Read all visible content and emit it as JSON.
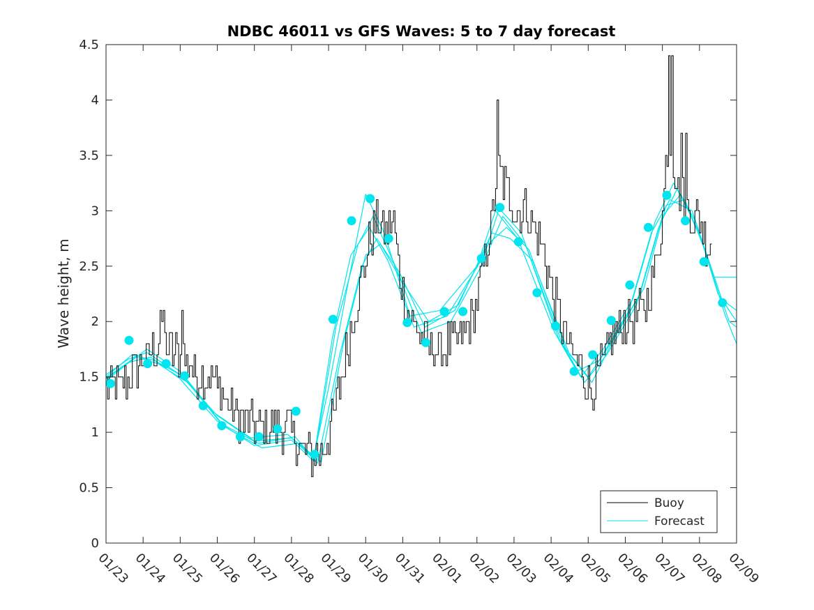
{
  "chart_data": {
    "type": "line",
    "title": "NDBC 46011 vs GFS Waves: 5 to 7 day forecast",
    "xlabel": "",
    "ylabel": "Wave height, m",
    "x_unit": "days since 01/23",
    "xlim": [
      0,
      17
    ],
    "ylim": [
      0,
      4.5
    ],
    "xtick_values": [
      0,
      1,
      2,
      3,
      4,
      5,
      6,
      7,
      8,
      9,
      10,
      11,
      12,
      13,
      14,
      15,
      16,
      17
    ],
    "xtick_labels": [
      "01/23",
      "01/24",
      "01/25",
      "01/26",
      "01/27",
      "01/28",
      "01/29",
      "01/30",
      "01/31",
      "02/01",
      "02/02",
      "02/03",
      "02/04",
      "02/05",
      "02/06",
      "02/07",
      "02/08",
      "02/09"
    ],
    "ytick_values": [
      0,
      0.5,
      1,
      1.5,
      2,
      2.5,
      3,
      3.5,
      4,
      4.5
    ],
    "ytick_labels": [
      "0",
      "0.5",
      "1",
      "1.5",
      "2",
      "2.5",
      "3",
      "3.5",
      "4",
      "4.5"
    ],
    "grid": false,
    "legend": {
      "position": "bottom-right",
      "entries": [
        "Buoy",
        "Forecast"
      ]
    },
    "colors": {
      "buoy": "#000000",
      "forecast": "#00e5ee"
    },
    "buoy_anchors": [
      [
        0.0,
        1.4
      ],
      [
        0.4,
        1.4
      ],
      [
        0.7,
        1.55
      ],
      [
        0.9,
        1.62
      ],
      [
        1.2,
        1.7
      ],
      [
        1.5,
        1.85
      ],
      [
        1.75,
        1.72
      ],
      [
        2.05,
        1.7
      ],
      [
        2.4,
        1.55
      ],
      [
        2.8,
        1.5
      ],
      [
        3.2,
        1.3
      ],
      [
        3.6,
        1.1
      ],
      [
        4.0,
        1.05
      ],
      [
        4.4,
        1.05
      ],
      [
        4.9,
        1.05
      ],
      [
        5.2,
        0.9
      ],
      [
        5.5,
        0.8
      ],
      [
        5.8,
        0.8
      ],
      [
        6.1,
        1.1
      ],
      [
        6.4,
        1.6
      ],
      [
        6.7,
        2.1
      ],
      [
        6.9,
        2.4
      ],
      [
        7.1,
        2.75
      ],
      [
        7.3,
        2.9
      ],
      [
        7.55,
        2.8
      ],
      [
        7.75,
        2.9
      ],
      [
        7.9,
        2.4
      ],
      [
        8.1,
        2.1
      ],
      [
        8.4,
        1.9
      ],
      [
        8.7,
        1.75
      ],
      [
        9.0,
        1.75
      ],
      [
        9.3,
        1.8
      ],
      [
        9.6,
        1.85
      ],
      [
        9.9,
        2.05
      ],
      [
        10.1,
        2.4
      ],
      [
        10.4,
        2.9
      ],
      [
        10.55,
        3.4
      ],
      [
        10.8,
        3.2
      ],
      [
        11.05,
        3.0
      ],
      [
        11.3,
        3.0
      ],
      [
        11.5,
        2.9
      ],
      [
        11.8,
        2.6
      ],
      [
        12.1,
        2.2
      ],
      [
        12.4,
        1.8
      ],
      [
        12.65,
        1.65
      ],
      [
        12.9,
        1.5
      ],
      [
        13.1,
        1.4
      ],
      [
        13.4,
        1.6
      ],
      [
        13.7,
        1.9
      ],
      [
        14.0,
        2.0
      ],
      [
        14.3,
        2.0
      ],
      [
        14.6,
        2.2
      ],
      [
        14.8,
        2.5
      ],
      [
        15.0,
        3.0
      ],
      [
        15.15,
        3.7
      ],
      [
        15.4,
        3.2
      ],
      [
        15.7,
        3.0
      ],
      [
        16.0,
        2.9
      ],
      [
        16.2,
        2.7
      ],
      [
        16.35,
        2.7
      ]
    ],
    "buoy_spikes": [
      [
        1.46,
        2.1
      ],
      [
        1.54,
        2.1
      ],
      [
        2.05,
        2.1
      ],
      [
        10.53,
        4.0
      ],
      [
        15.17,
        4.4
      ],
      [
        15.24,
        4.4
      ],
      [
        15.5,
        3.7
      ],
      [
        15.62,
        3.7
      ]
    ],
    "forecast_dots": [
      [
        0.12,
        1.44
      ],
      [
        0.62,
        1.83
      ],
      [
        1.12,
        1.62
      ],
      [
        1.62,
        1.62
      ],
      [
        2.12,
        1.51
      ],
      [
        2.62,
        1.24
      ],
      [
        3.12,
        1.06
      ],
      [
        3.62,
        0.96
      ],
      [
        4.12,
        0.96
      ],
      [
        4.62,
        1.03
      ],
      [
        5.12,
        1.19
      ],
      [
        5.62,
        0.8
      ],
      [
        6.12,
        2.02
      ],
      [
        6.62,
        2.91
      ],
      [
        7.12,
        3.11
      ],
      [
        7.62,
        2.75
      ],
      [
        8.12,
        1.99
      ],
      [
        8.62,
        1.81
      ],
      [
        9.12,
        2.09
      ],
      [
        9.62,
        2.09
      ],
      [
        10.12,
        2.57
      ],
      [
        10.62,
        3.03
      ],
      [
        11.12,
        2.72
      ],
      [
        11.62,
        2.26
      ],
      [
        12.12,
        1.96
      ],
      [
        12.62,
        1.55
      ],
      [
        13.12,
        1.7
      ],
      [
        13.62,
        2.01
      ],
      [
        14.12,
        2.33
      ],
      [
        14.62,
        2.85
      ],
      [
        15.12,
        3.14
      ],
      [
        15.62,
        2.91
      ],
      [
        16.12,
        2.54
      ],
      [
        16.62,
        2.17
      ]
    ],
    "forecast_runs": [
      {
        "name": "run 1",
        "points": [
          [
            0,
            1.52
          ],
          [
            0.6,
            1.66
          ],
          [
            1.1,
            1.72
          ],
          [
            2.0,
            1.52
          ],
          [
            3.0,
            1.15
          ],
          [
            4.0,
            0.92
          ],
          [
            5.0,
            0.95
          ],
          [
            5.6,
            0.76
          ],
          [
            6.1,
            1.85
          ],
          [
            6.6,
            2.6
          ],
          [
            7.1,
            2.85
          ],
          [
            7.6,
            2.55
          ],
          [
            8.3,
            1.95
          ],
          [
            9.2,
            2.05
          ],
          [
            10.2,
            2.6
          ],
          [
            10.6,
            3.02
          ],
          [
            11.2,
            2.8
          ],
          [
            12.2,
            1.85
          ],
          [
            12.8,
            1.5
          ],
          [
            13.4,
            1.75
          ],
          [
            14.2,
            2.2
          ],
          [
            14.8,
            2.9
          ],
          [
            15.3,
            3.25
          ],
          [
            15.9,
            2.9
          ],
          [
            16.5,
            2.25
          ],
          [
            17.0,
            2.0
          ]
        ]
      },
      {
        "name": "run 2",
        "points": [
          [
            0,
            1.48
          ],
          [
            0.6,
            1.63
          ],
          [
            1.2,
            1.68
          ],
          [
            2.0,
            1.48
          ],
          [
            3.0,
            1.1
          ],
          [
            4.0,
            0.88
          ],
          [
            5.0,
            0.93
          ],
          [
            5.6,
            0.74
          ],
          [
            6.2,
            1.95
          ],
          [
            6.8,
            2.7
          ],
          [
            7.2,
            2.95
          ],
          [
            7.8,
            2.5
          ],
          [
            8.5,
            1.9
          ],
          [
            9.3,
            2.0
          ],
          [
            10.2,
            2.55
          ],
          [
            10.7,
            2.95
          ],
          [
            11.3,
            2.7
          ],
          [
            12.3,
            1.8
          ],
          [
            12.9,
            1.45
          ],
          [
            13.5,
            1.7
          ],
          [
            14.3,
            2.15
          ],
          [
            14.9,
            2.85
          ],
          [
            15.4,
            3.2
          ],
          [
            16.0,
            2.8
          ],
          [
            16.6,
            2.2
          ],
          [
            17.0,
            2.1
          ]
        ]
      },
      {
        "name": "run 3",
        "points": [
          [
            0,
            1.5
          ],
          [
            0.7,
            1.7
          ],
          [
            1.3,
            1.65
          ],
          [
            2.1,
            1.5
          ],
          [
            3.1,
            1.08
          ],
          [
            4.1,
            0.9
          ],
          [
            5.1,
            0.96
          ],
          [
            5.7,
            0.72
          ],
          [
            6.3,
            1.7
          ],
          [
            6.9,
            2.5
          ],
          [
            7.3,
            2.75
          ],
          [
            7.9,
            2.45
          ],
          [
            8.6,
            1.95
          ],
          [
            9.4,
            2.1
          ],
          [
            10.3,
            2.7
          ],
          [
            10.8,
            2.85
          ],
          [
            11.4,
            2.65
          ],
          [
            12.4,
            1.75
          ],
          [
            13.0,
            1.5
          ],
          [
            13.6,
            1.8
          ],
          [
            14.4,
            2.25
          ],
          [
            15.0,
            2.95
          ],
          [
            15.5,
            3.15
          ],
          [
            16.1,
            2.7
          ],
          [
            16.7,
            2.05
          ],
          [
            17.0,
            1.8
          ]
        ]
      },
      {
        "name": "run 4",
        "points": [
          [
            0,
            1.46
          ],
          [
            0.5,
            1.6
          ],
          [
            1.1,
            1.75
          ],
          [
            2.0,
            1.55
          ],
          [
            2.9,
            1.18
          ],
          [
            3.9,
            0.95
          ],
          [
            4.9,
            0.98
          ],
          [
            5.6,
            0.78
          ],
          [
            6.0,
            1.4
          ],
          [
            6.5,
            2.3
          ],
          [
            7.0,
            3.15
          ],
          [
            7.5,
            2.8
          ],
          [
            8.2,
            2.05
          ],
          [
            9.0,
            2.1
          ],
          [
            10.0,
            2.5
          ],
          [
            10.5,
            3.0
          ],
          [
            11.1,
            2.75
          ],
          [
            12.1,
            1.9
          ],
          [
            12.7,
            1.55
          ],
          [
            13.3,
            1.65
          ],
          [
            14.1,
            2.1
          ],
          [
            14.7,
            2.8
          ],
          [
            15.2,
            3.1
          ],
          [
            15.8,
            3.0
          ],
          [
            16.4,
            2.4
          ],
          [
            17.0,
            2.4
          ]
        ]
      },
      {
        "name": "run 5",
        "points": [
          [
            0,
            1.49
          ],
          [
            0.8,
            1.68
          ],
          [
            1.4,
            1.62
          ],
          [
            2.2,
            1.45
          ],
          [
            3.2,
            1.05
          ],
          [
            4.2,
            0.86
          ],
          [
            5.2,
            0.9
          ],
          [
            5.8,
            0.73
          ],
          [
            6.4,
            1.8
          ],
          [
            7.0,
            2.6
          ],
          [
            7.4,
            2.7
          ],
          [
            8.0,
            2.35
          ],
          [
            8.7,
            2.0
          ],
          [
            9.5,
            2.15
          ],
          [
            10.4,
            2.8
          ],
          [
            10.9,
            2.75
          ],
          [
            11.5,
            2.55
          ],
          [
            12.5,
            1.7
          ],
          [
            13.1,
            1.45
          ],
          [
            13.7,
            1.85
          ],
          [
            14.5,
            2.3
          ],
          [
            15.1,
            3.05
          ],
          [
            15.6,
            3.1
          ],
          [
            16.2,
            2.6
          ],
          [
            16.8,
            2.0
          ],
          [
            17.0,
            1.95
          ]
        ]
      }
    ]
  }
}
